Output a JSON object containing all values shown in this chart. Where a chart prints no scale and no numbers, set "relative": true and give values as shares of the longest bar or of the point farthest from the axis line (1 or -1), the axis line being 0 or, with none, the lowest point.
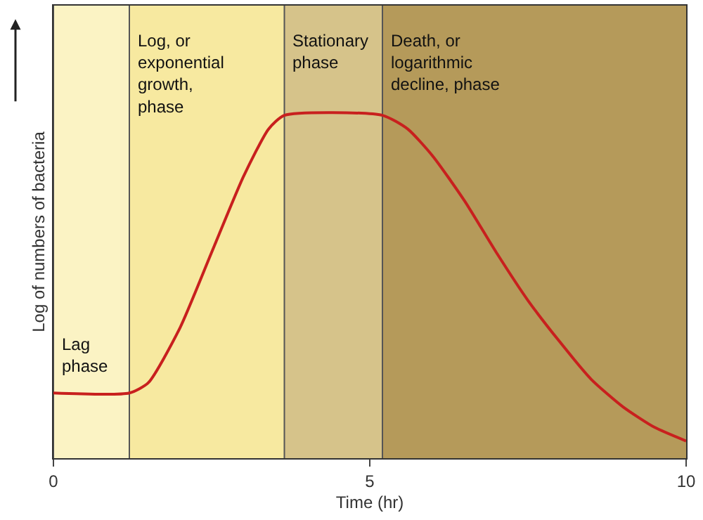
{
  "chart_data": {
    "type": "line",
    "relative": true,
    "xlabel": "Time (hr)",
    "ylabel": "Log of numbers of bacteria",
    "xlim": [
      0,
      10
    ],
    "xticks": [
      0,
      5,
      10
    ],
    "grid": false,
    "marker": "none",
    "line_style": "solid",
    "x": [
      0,
      1.2,
      1.5,
      2.0,
      2.5,
      3.0,
      3.4,
      3.65,
      5.2,
      5.6,
      6.0,
      6.5,
      7.0,
      7.5,
      8.0,
      8.5,
      9.0,
      9.5,
      10
    ],
    "series": [
      {
        "color": "#c8201e",
        "values": [
          0.19,
          0.19,
          0.22,
          0.38,
          0.6,
          0.82,
          0.96,
          1,
          1,
          0.96,
          0.88,
          0.75,
          0.6,
          0.46,
          0.34,
          0.23,
          0.15,
          0.09,
          0.05
        ]
      }
    ],
    "bands": [
      {
        "axis": "x",
        "from": 0,
        "to": 1.2,
        "label": "Lag\nphase",
        "color": "#fbf3c4"
      },
      {
        "axis": "x",
        "from": 1.2,
        "to": 3.65,
        "label": "Log, or\nexponential\ngrowth,\nphase",
        "color": "#f7e9a0"
      },
      {
        "axis": "x",
        "from": 3.65,
        "to": 5.2,
        "label": "Stationary\nphase",
        "color": "#d6c38a"
      },
      {
        "axis": "x",
        "from": 5.2,
        "to": 10,
        "label": "Death, or\nlogarithmic\ndecline, phase",
        "color": "#b59a5a"
      }
    ]
  }
}
